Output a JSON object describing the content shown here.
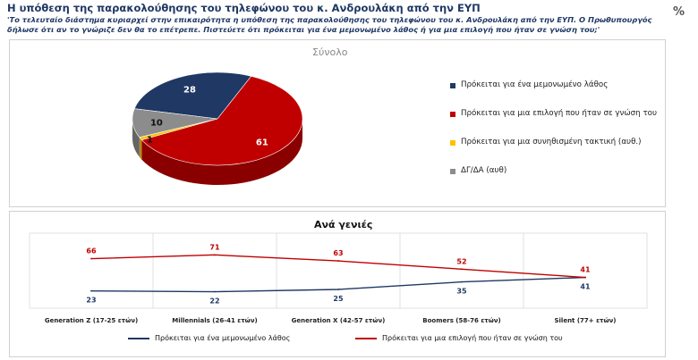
{
  "header": {
    "title": "Η υπόθεση της παρακολούθησης του τηλεφώνου του κ. Ανδρουλάκη από την ΕΥΠ",
    "question": "'Το τελευταίο διάστημα κυριαρχεί στην επικαιρότητα η υπόθεση της παρακολούθησης του τηλεφώνου του κ. Ανδρουλάκη από την ΕΥΠ. Ο Πρωθυπουργός δήλωσε ότι αν το γνώριζε δεν θα το επέτρεπε. Πιστεύετε ότι πρόκειται για ένα μεμονωμένο λάθος ή για μια επιλογή που ήταν σε γνώση του;'",
    "unit_label": "%"
  },
  "chart_data": [
    {
      "type": "pie",
      "title": "Σύνολο",
      "legend_position": "right",
      "slices": [
        {
          "label": "Πρόκειται για ένα μεμονωμένο λάθος",
          "value": 28,
          "color": "#1f3864"
        },
        {
          "label": "Πρόκειται για μια επιλογή που ήταν σε γνώση του",
          "value": 61,
          "color": "#c00000"
        },
        {
          "label": "Πρόκειται για μια συνηθισμένη τακτική (αυθ.)",
          "value": 1,
          "color": "#ffc000"
        },
        {
          "label": "ΔΓ/ΔΑ (αυθ)",
          "value": 10,
          "color": "#8c8c8c"
        }
      ]
    },
    {
      "type": "line",
      "title": "Ανά γενιές",
      "legend_position": "bottom",
      "categories": [
        "Generation Z (17-25 ετών)",
        "Millennials (26-41 ετών)",
        "Generation X (42-57 ετών)",
        "Boomers (58-76 ετών)",
        "Silent (77+ ετών)"
      ],
      "ylim": [
        0,
        100
      ],
      "grid": true,
      "series": [
        {
          "name": "Πρόκειται για ένα μεμονωμένο λάθος",
          "values": [
            23,
            22,
            25,
            35,
            41
          ],
          "color": "#1f3864"
        },
        {
          "name": "Πρόκειται για μια  επιλογή που ήταν σε γνώση του",
          "values": [
            66,
            71,
            63,
            52,
            41
          ],
          "color": "#c00000"
        }
      ]
    }
  ]
}
